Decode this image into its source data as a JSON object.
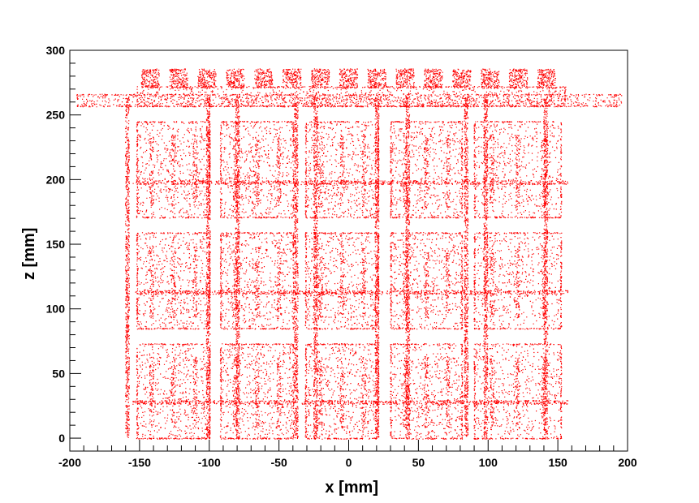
{
  "chart_data": {
    "type": "scatter",
    "title": "",
    "xlabel": "x [mm]",
    "ylabel": "z [mm]",
    "xlim": [
      -200,
      200
    ],
    "ylim": [
      -10,
      300
    ],
    "x_ticks": [
      -200,
      -150,
      -100,
      -50,
      0,
      50,
      100,
      150,
      200
    ],
    "y_ticks": [
      0,
      50,
      100,
      150,
      200,
      250,
      300
    ],
    "grid": false,
    "legend": "none",
    "marker_color": "#ff0000",
    "regions": {
      "module_rows_z": [
        [
          0,
          73
        ],
        [
          85,
          159
        ],
        [
          171,
          245
        ]
      ],
      "module_columns_x": [
        [
          -152,
          -100
        ],
        [
          -92,
          -40
        ],
        [
          -31,
          21
        ],
        [
          30,
          81
        ],
        [
          90,
          152
        ]
      ],
      "horizontal_bar_z": [
        28,
        113,
        198
      ],
      "top_frame_z": [
        257,
        272
      ],
      "top_frame_x": [
        -152,
        155
      ],
      "top_plate_z": [
        257,
        266
      ],
      "top_plate_x": [
        -195,
        195
      ],
      "top_electronics_z": [
        271,
        286
      ],
      "vertical_rods_x": [
        -159,
        -101,
        -80,
        -38,
        -24,
        20,
        42,
        84,
        98,
        141
      ]
    }
  }
}
